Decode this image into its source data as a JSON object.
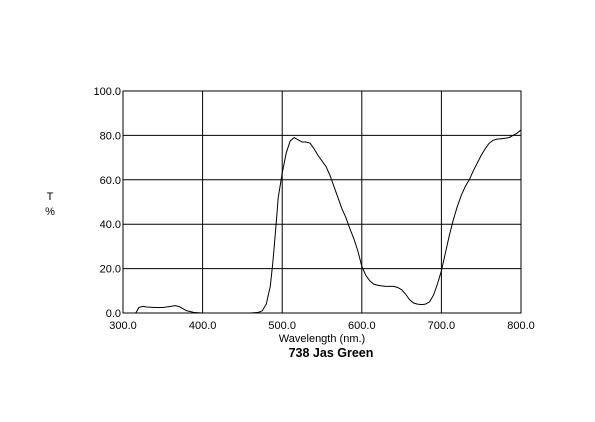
{
  "chart_data": {
    "type": "line",
    "title": "738 Jas Green",
    "xlabel": "Wavelength (nm.)",
    "ylabel": [
      "T",
      "%"
    ],
    "xlim": [
      300,
      800
    ],
    "ylim": [
      0,
      100
    ],
    "grid": true,
    "legend": "none",
    "line_color": "#000000",
    "x_ticks": [
      "300.0",
      "400.0",
      "500.0",
      "600.0",
      "700.0",
      "800.0"
    ],
    "y_ticks": [
      "0.0",
      "20.0",
      "40.0",
      "60.0",
      "80.0",
      "100.0"
    ],
    "series": [
      {
        "x": [
          300,
          310,
          316,
          320,
          325,
          330,
          340,
          350,
          360,
          365,
          370,
          375,
          380,
          390,
          400,
          420,
          440,
          460,
          470,
          475,
          480,
          485,
          488,
          490,
          493,
          495,
          500,
          505,
          510,
          515,
          520,
          525,
          530,
          535,
          540,
          545,
          550,
          555,
          560,
          565,
          570,
          575,
          580,
          585,
          590,
          595,
          600,
          605,
          610,
          615,
          620,
          625,
          630,
          635,
          640,
          645,
          650,
          655,
          660,
          665,
          670,
          675,
          680,
          685,
          690,
          695,
          700,
          705,
          710,
          715,
          720,
          725,
          730,
          735,
          740,
          745,
          750,
          755,
          760,
          765,
          770,
          775,
          780,
          785,
          790,
          795,
          800
        ],
        "y": [
          0,
          0,
          0,
          2.5,
          3.0,
          2.7,
          2.5,
          2.5,
          3.0,
          3.3,
          3.0,
          2.0,
          1.0,
          0.2,
          0,
          0,
          0,
          0,
          0.3,
          1.0,
          4.0,
          12.0,
          22.0,
          30.0,
          43.0,
          52.0,
          63.0,
          72.0,
          77.5,
          79.0,
          78.0,
          77.0,
          77.0,
          76.5,
          74.0,
          71.0,
          68.5,
          66.0,
          62.0,
          57.0,
          52.0,
          47.0,
          43.0,
          38.0,
          33.5,
          28.0,
          21.0,
          17.0,
          14.5,
          13.0,
          12.5,
          12.2,
          12.0,
          12.0,
          12.0,
          11.5,
          10.5,
          8.5,
          6.0,
          4.5,
          4.0,
          3.8,
          4.0,
          5.0,
          8.0,
          13.0,
          19.0,
          27.0,
          35.0,
          42.0,
          48.0,
          53.0,
          57.0,
          60.0,
          64.0,
          67.5,
          71.0,
          74.0,
          76.5,
          77.8,
          78.3,
          78.5,
          78.7,
          79.0,
          80.0,
          81.0,
          82.5
        ]
      }
    ]
  }
}
